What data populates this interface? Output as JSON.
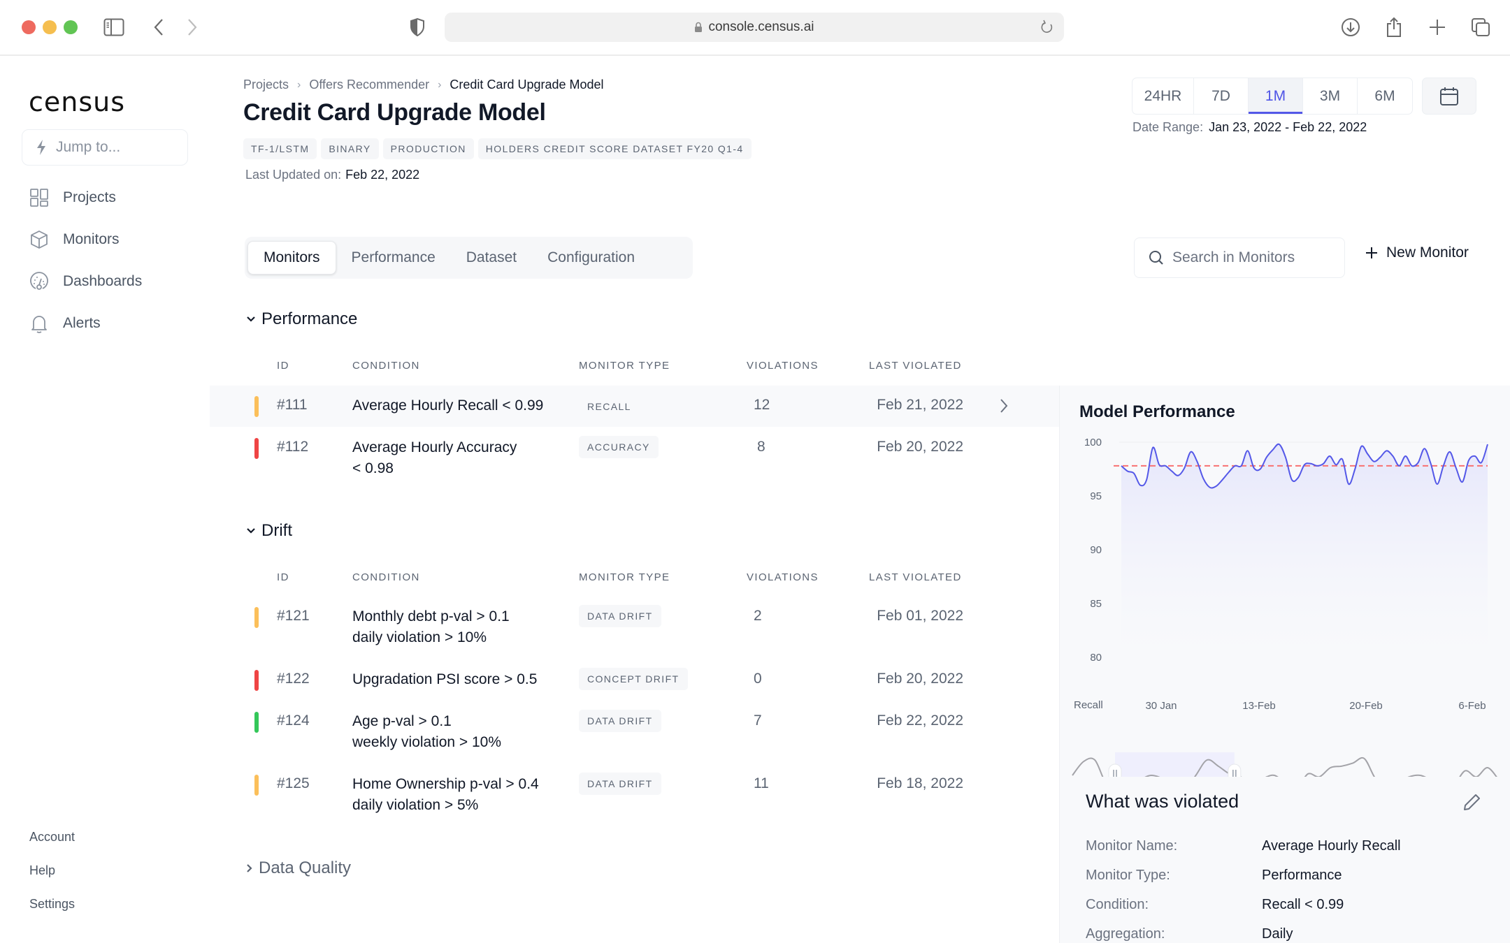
{
  "browser": {
    "url": "console.census.ai",
    "icons": [
      "sidebar-toggle-icon",
      "back-icon",
      "forward-icon",
      "shield-icon",
      "lock-icon",
      "reload-icon",
      "download-icon",
      "share-icon",
      "new-tab-icon",
      "tabs-overview-icon"
    ]
  },
  "sidebar": {
    "logo": "census",
    "jump_placeholder": "Jump to...",
    "items": [
      {
        "label": "Projects",
        "icon": "grid-icon"
      },
      {
        "label": "Monitors",
        "icon": "cube-icon"
      },
      {
        "label": "Dashboards",
        "icon": "gauge-icon"
      },
      {
        "label": "Alerts",
        "icon": "bell-icon"
      }
    ],
    "bottom": [
      {
        "label": "Account"
      },
      {
        "label": "Help"
      },
      {
        "label": "Settings"
      }
    ]
  },
  "header": {
    "breadcrumb": [
      "Projects",
      "Offers Recommender",
      "Credit Card Upgrade Model"
    ],
    "title": "Credit Card Upgrade Model",
    "tags": [
      "TF-1/LSTM",
      "BINARY",
      "PRODUCTION",
      "HOLDERS CREDIT SCORE DATASET FY20 Q1-4"
    ],
    "last_updated_label": "Last Updated on:",
    "last_updated_value": "Feb 22, 2022",
    "time_ranges": [
      "24HR",
      "7D",
      "1M",
      "3M",
      "6M"
    ],
    "time_range_selected": "1M",
    "date_range_label": "Date Range:",
    "date_range_value": "Jan 23, 2022 - Feb 22, 2022"
  },
  "tabs": [
    {
      "label": "Monitors",
      "active": true
    },
    {
      "label": "Performance",
      "active": false
    },
    {
      "label": "Dataset",
      "active": false
    },
    {
      "label": "Configuration",
      "active": false
    }
  ],
  "search": {
    "placeholder": "Search in Monitors"
  },
  "new_monitor_label": "New Monitor",
  "columns": [
    "ID",
    "CONDITION",
    "MONITOR TYPE",
    "VIOLATIONS",
    "LAST VIOLATED"
  ],
  "colors": {
    "warning": "#fbbf5a",
    "critical": "#ef4444",
    "ok": "#34c759",
    "accent": "#5458e8",
    "threshold": "#f87171"
  },
  "sections": [
    {
      "title": "Performance",
      "expanded": true,
      "rows": [
        {
          "id": "#111",
          "condition": [
            "Average Hourly Recall < 0.99"
          ],
          "type": "RECALL",
          "violations": "12",
          "last_violated": "Feb 21, 2022",
          "status": "warning",
          "selected": true
        },
        {
          "id": "#112",
          "condition": [
            "Average Hourly Accuracy",
            "< 0.98"
          ],
          "type": "ACCURACY",
          "violations": "8",
          "last_violated": "Feb 20, 2022",
          "status": "critical",
          "selected": false
        }
      ]
    },
    {
      "title": "Drift",
      "expanded": true,
      "rows": [
        {
          "id": "#121",
          "condition": [
            "Monthly debt p-val > 0.1",
            "daily violation > 10%"
          ],
          "type": "DATA DRIFT",
          "violations": "2",
          "last_violated": "Feb 01, 2022",
          "status": "warning",
          "selected": false
        },
        {
          "id": "#122",
          "condition": [
            "Upgradation PSI score > 0.5"
          ],
          "type": "CONCEPT DRIFT",
          "violations": "0",
          "last_violated": "Feb 20, 2022",
          "status": "critical",
          "selected": false
        },
        {
          "id": "#124",
          "condition": [
            "Age p-val > 0.1",
            "weekly violation > 10%"
          ],
          "type": "DATA DRIFT",
          "violations": "7",
          "last_violated": "Feb 22, 2022",
          "status": "ok",
          "selected": false
        },
        {
          "id": "#125",
          "condition": [
            "Home Ownership p-val > 0.4",
            "daily violation > 5%"
          ],
          "type": "DATA DRIFT",
          "violations": "11",
          "last_violated": "Feb 18, 2022",
          "status": "warning",
          "selected": false
        }
      ]
    },
    {
      "title": "Data Quality",
      "expanded": false,
      "rows": []
    }
  ],
  "panel": {
    "title": "Model Performance",
    "violated_title": "What was violated",
    "details": [
      {
        "key": "Monitor Name:",
        "value": "Average Hourly Recall"
      },
      {
        "key": "Monitor Type:",
        "value": "Performance"
      },
      {
        "key": "Condition:",
        "value": "Recall < 0.99"
      },
      {
        "key": "Aggregation:",
        "value": "Daily"
      }
    ]
  },
  "chart_data": {
    "type": "line",
    "title": "Model Performance",
    "ylabel": "Recall",
    "xlabel": "",
    "ylim": [
      80,
      100
    ],
    "yticks": [
      100,
      95,
      90,
      85,
      80
    ],
    "xticks": [
      "30 Jan",
      "13-Feb",
      "20-Feb",
      "6-Feb"
    ],
    "threshold": 97.8,
    "grid": false,
    "series": [
      {
        "name": "Recall",
        "values": [
          97.8,
          97.3,
          97.1,
          96.0,
          96.5,
          99.5,
          97.9,
          97.8,
          97.3,
          96.9,
          97.6,
          99.1,
          98.2,
          96.6,
          95.8,
          95.9,
          96.5,
          97.2,
          97.8,
          97.8,
          99.2,
          97.6,
          97.5,
          98.6,
          99.3,
          99.8,
          98.6,
          96.5,
          96.7,
          97.9,
          98.0,
          97.8,
          98.0,
          98.7,
          97.9,
          98.4,
          96.1,
          97.5,
          99.6,
          98.9,
          98.2,
          98.6,
          99.2,
          98.7,
          97.8,
          98.7,
          97.8,
          98.1,
          99.4,
          98.0,
          96.1,
          97.8,
          99.1,
          97.6,
          96.3,
          98.3,
          98.7,
          98.1,
          99.8
        ]
      }
    ],
    "navigator": {
      "values": [
        60,
        78,
        80,
        50,
        48,
        56,
        55,
        60,
        56,
        46,
        40,
        60,
        80,
        72,
        62,
        58,
        48,
        56,
        60,
        50,
        44,
        62,
        58,
        70,
        72,
        76,
        82,
        56,
        44,
        50,
        58,
        60,
        54,
        50,
        48,
        66,
        58,
        70,
        54
      ],
      "selection_start": 0.1,
      "selection_end": 0.38
    }
  }
}
